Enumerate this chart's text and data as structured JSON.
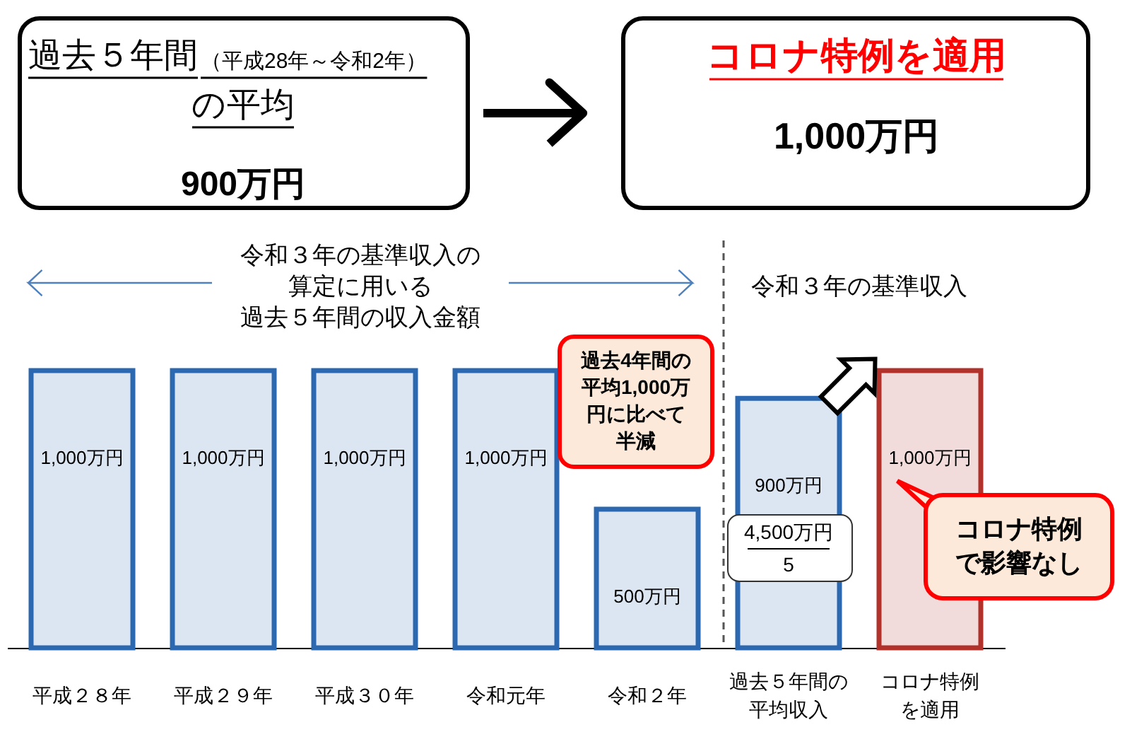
{
  "chart_data": {
    "type": "bar",
    "categories": [
      "平成２８年",
      "平成２９年",
      "平成３０年",
      "令和元年",
      "令和２年",
      "過去５年間の平均収入",
      "コロナ特例を適用"
    ],
    "values": [
      1000,
      1000,
      1000,
      1000,
      500,
      900,
      1000
    ],
    "colors": [
      "#dce6f2",
      "#dce6f2",
      "#dce6f2",
      "#dce6f2",
      "#dce6f2",
      "#dce6f2",
      "#f2dcdb"
    ],
    "value_labels": [
      "1,000万円",
      "1,000万円",
      "1,000万円",
      "1,000万円",
      "500万円",
      "900万円",
      "1,000万円"
    ],
    "annotations": [
      "過去５年間",
      "（平成28年～令和2年）",
      "の平均",
      "900万円",
      "コロナ特例を適用",
      "1,000万円",
      "令和３年の基準収入の算定に用いる過去５年間の収入金額",
      "令和３年の基準収入",
      "過去4年間の平均1,000万円に比べて半減",
      "4,500万円",
      "5",
      "コロナ特例で影響なし"
    ]
  }
}
